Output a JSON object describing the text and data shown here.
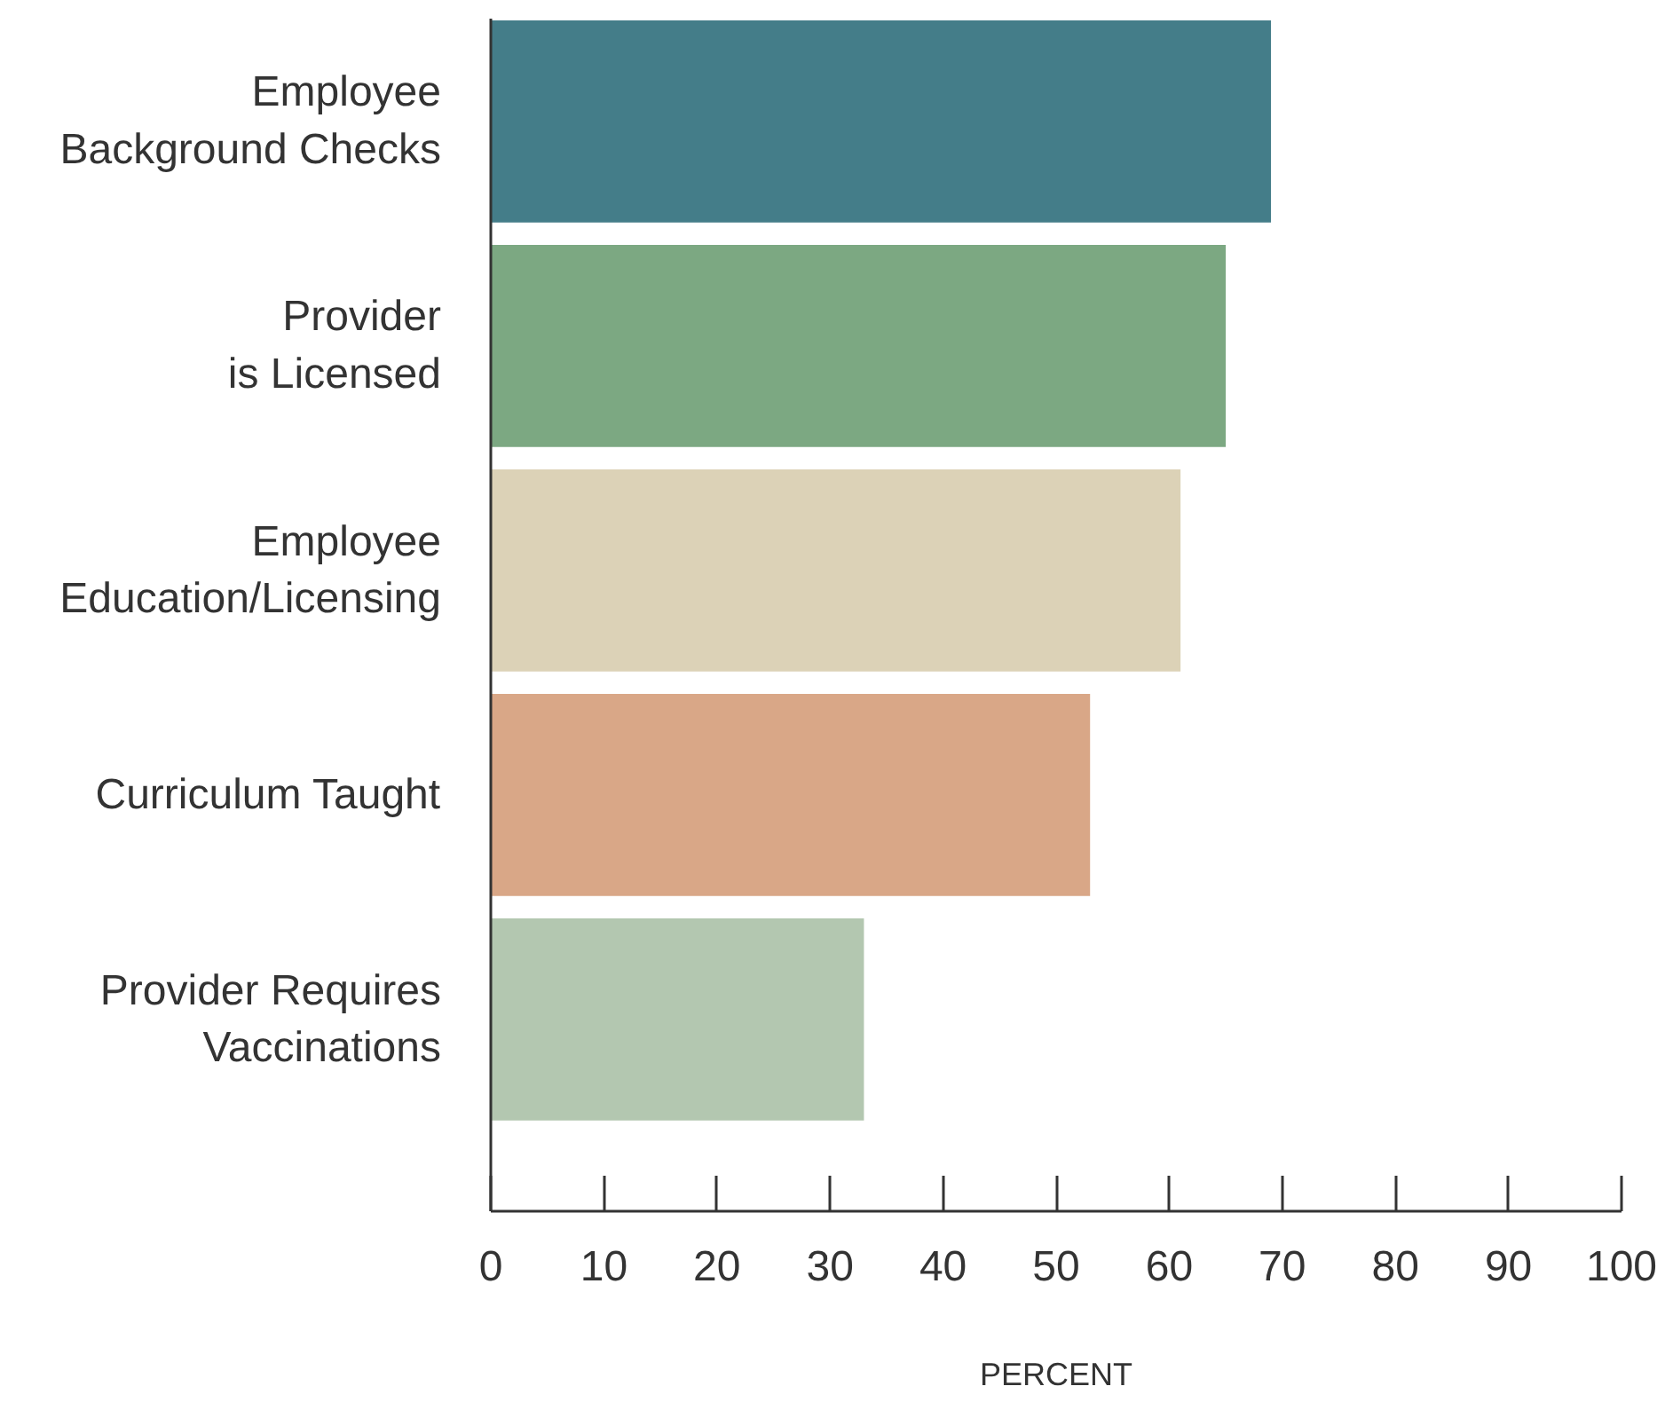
{
  "chart_data": {
    "type": "bar",
    "orientation": "horizontal",
    "categories": [
      "Employee\nBackground Checks",
      "Provider\nis Licensed",
      "Employee\nEducation/Licensing",
      "Curriculum Taught",
      "Provider Requires\nVaccinations"
    ],
    "values": [
      69,
      65,
      61,
      53,
      33
    ],
    "colors": [
      "#447d89",
      "#7ca882",
      "#dcd2b7",
      "#d9a787",
      "#b3c7b0"
    ],
    "xlabel": "PERCENT",
    "xlim": [
      0,
      100
    ],
    "xticks": [
      0,
      10,
      20,
      30,
      40,
      50,
      60,
      70,
      80,
      90,
      100
    ],
    "grid": false
  }
}
